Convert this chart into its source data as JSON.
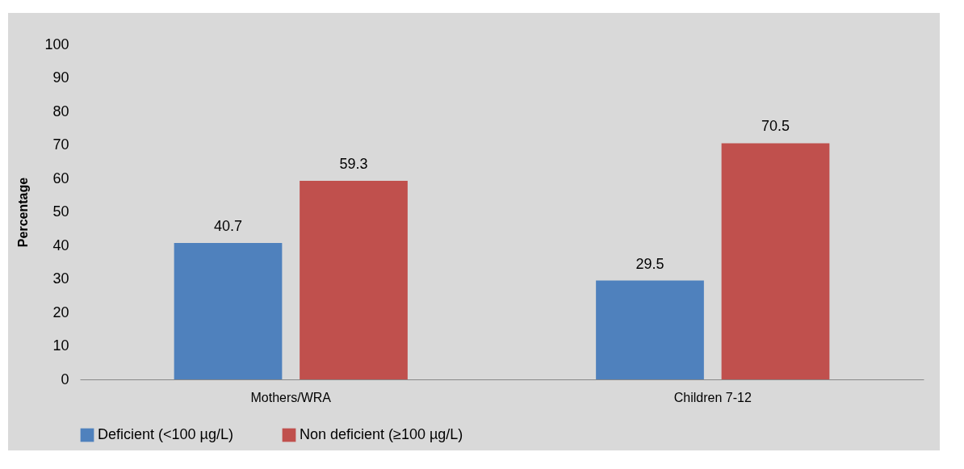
{
  "chart_data": {
    "type": "bar",
    "ylabel": "Percentage",
    "categories": [
      "Mothers/WRA",
      "Children 7-12"
    ],
    "series": [
      {
        "name": "Deficient (<100 µg/L)",
        "color": "#4f81bd",
        "values": [
          40.7,
          29.5
        ]
      },
      {
        "name": "Non deficient (≥100 µg/L)",
        "color": "#c0504d",
        "values": [
          59.3,
          70.5
        ]
      }
    ],
    "ylim": [
      0,
      100
    ],
    "yticks": [
      0,
      10,
      20,
      30,
      40,
      50,
      60,
      70,
      80,
      90,
      100
    ],
    "grid": false,
    "legend": "bottom",
    "data_labels": true
  }
}
